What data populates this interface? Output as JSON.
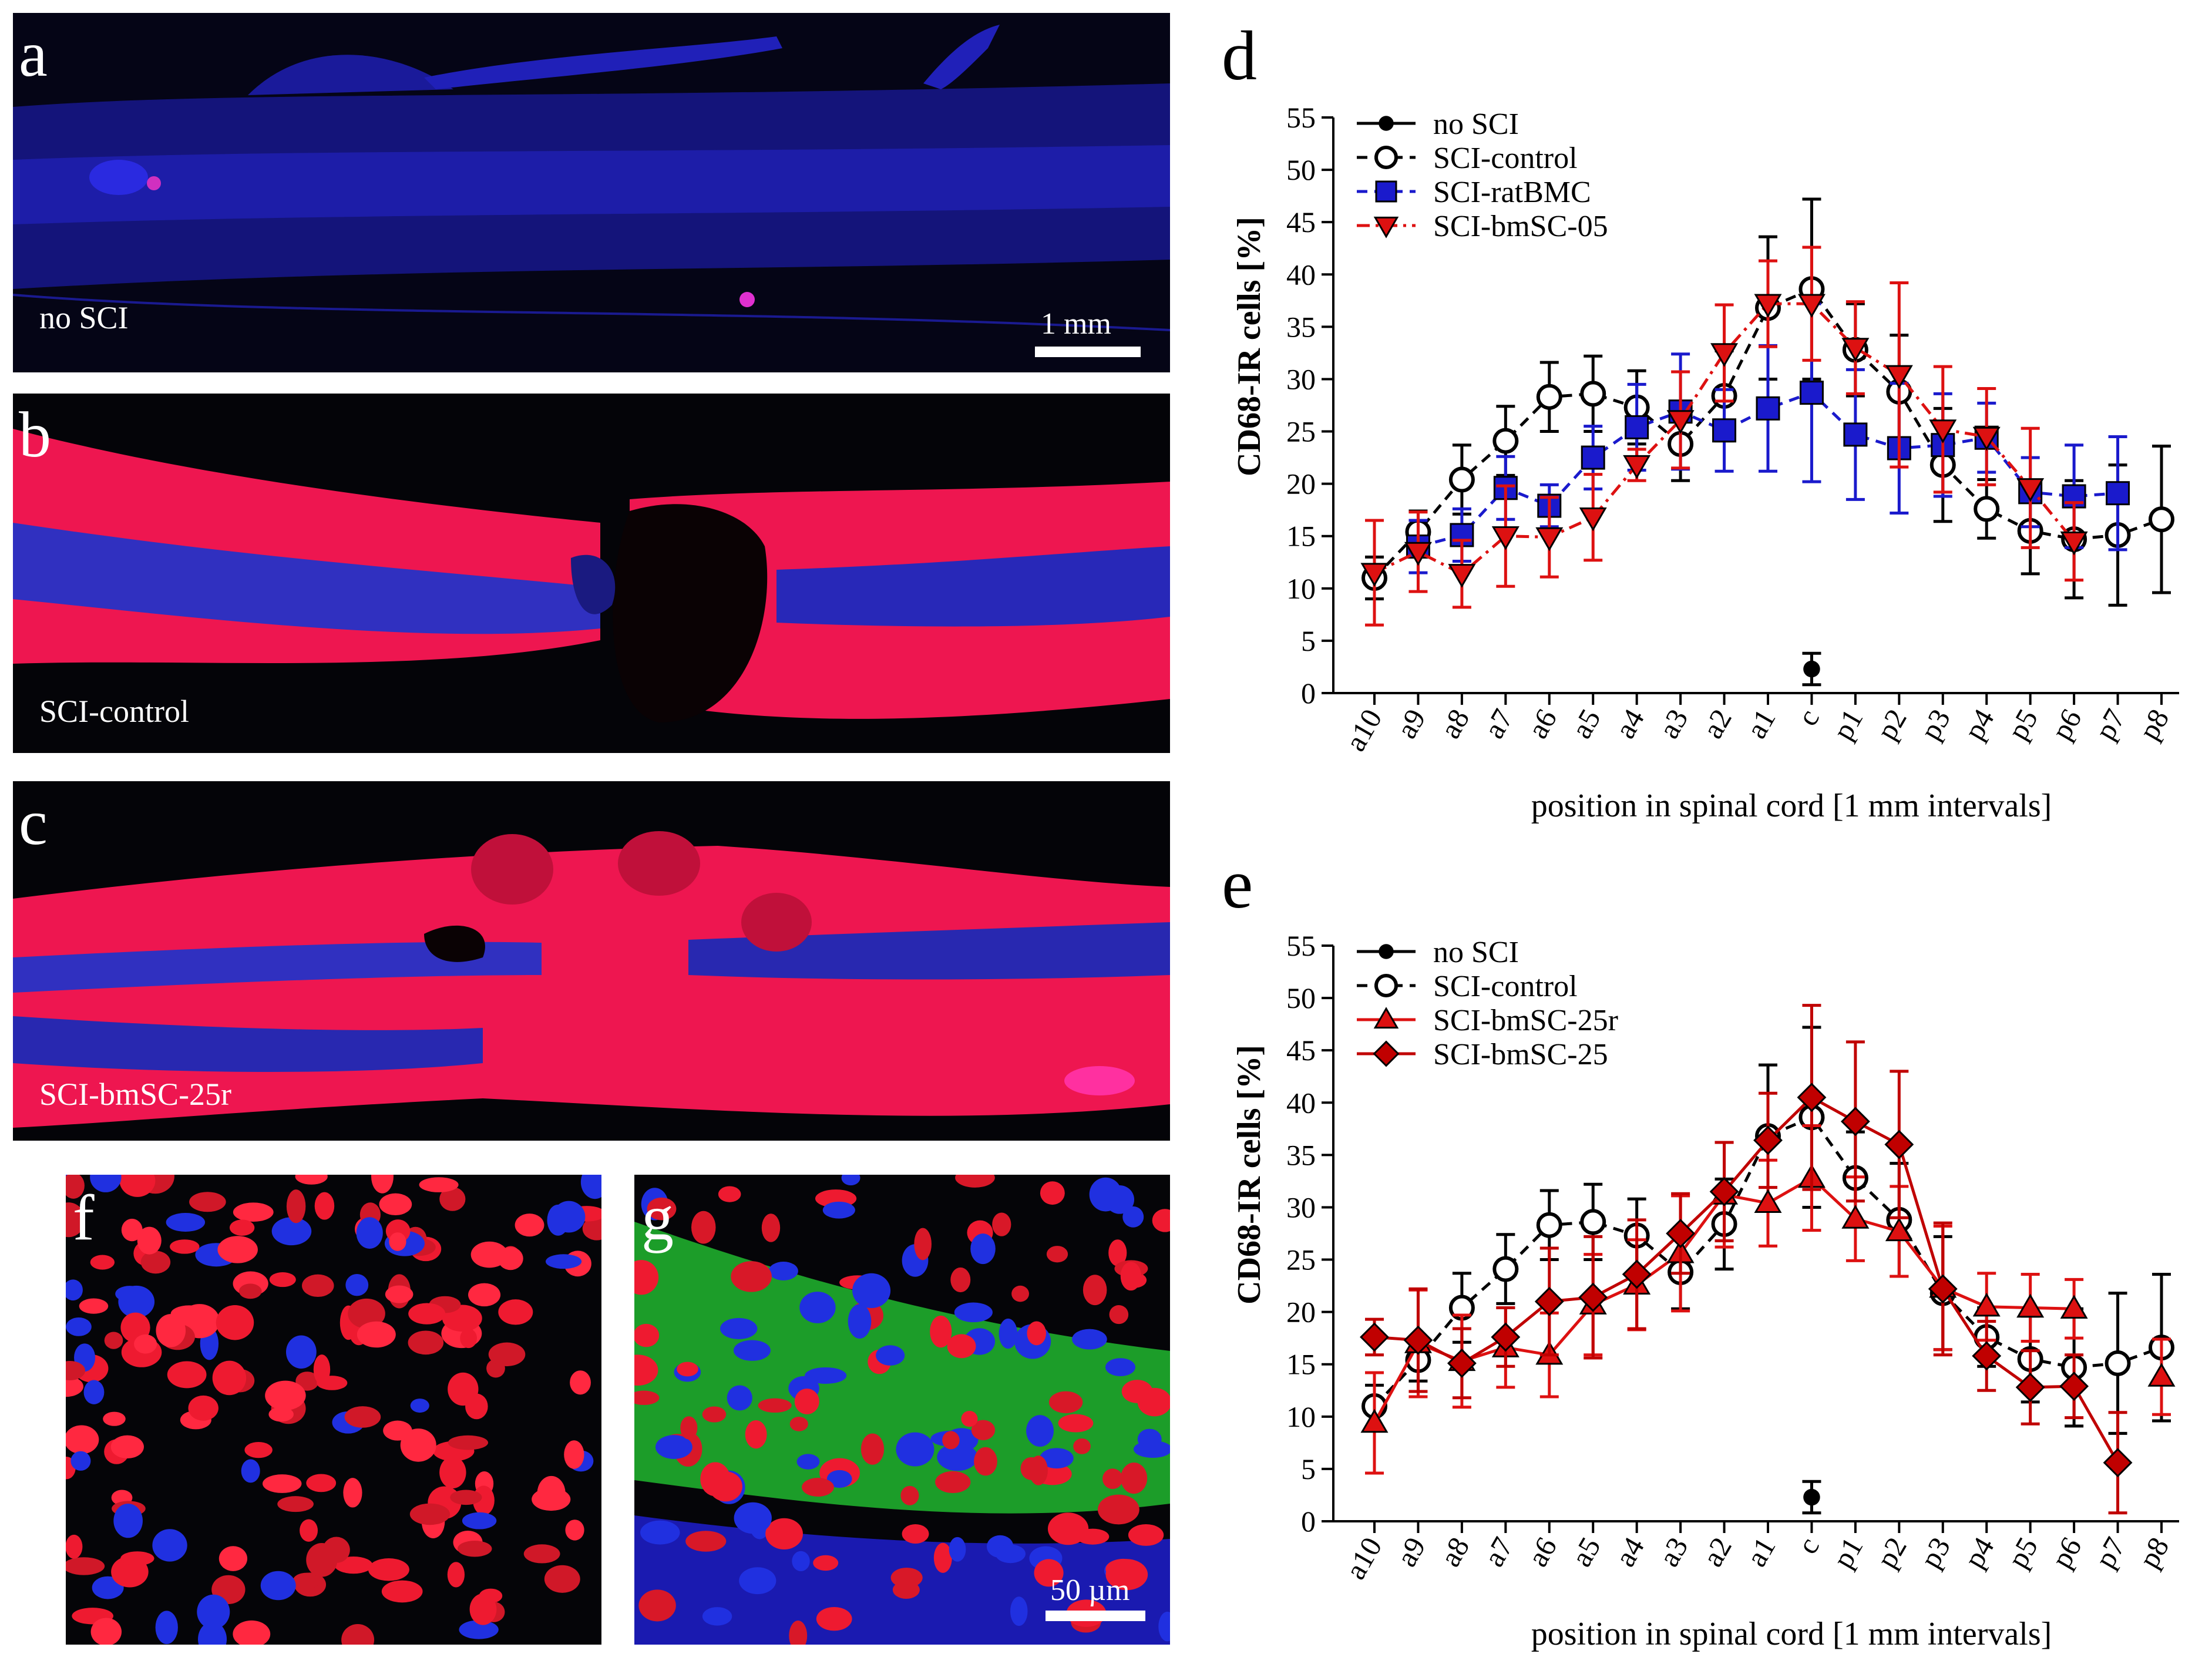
{
  "panels": {
    "a": {
      "letter": "a",
      "condition": "no SCI",
      "scale": "1 mm"
    },
    "b": {
      "letter": "b",
      "condition": "SCI-control"
    },
    "c": {
      "letter": "c",
      "condition": "SCI-bmSC-25r"
    },
    "f": {
      "letter": "f"
    },
    "g": {
      "letter": "g",
      "scale": "50 µm"
    }
  },
  "colors": {
    "black": "#000000",
    "blue": "#1a1acc",
    "red": "#dd1111",
    "darkred": "#c00000"
  },
  "chart_data": [
    {
      "type": "line",
      "panel_letter": "d",
      "title": "",
      "xlabel": "position in spinal cord [1 mm intervals]",
      "ylabel": "CD68-IR cells [%]",
      "ylim": [
        0,
        55
      ],
      "yticks": [
        0,
        5,
        10,
        15,
        20,
        25,
        30,
        35,
        40,
        45,
        50,
        55
      ],
      "categories": [
        "a10",
        "a9",
        "a8",
        "a7",
        "a6",
        "a5",
        "a4",
        "a3",
        "a2",
        "a1",
        "c",
        "p1",
        "p2",
        "p3",
        "p4",
        "p5",
        "p6",
        "p7",
        "p8"
      ],
      "legend": "top-left",
      "series": [
        {
          "name": "no SCI",
          "marker": "dot",
          "color": "#000000",
          "dash": "solid",
          "values": [
            null,
            null,
            null,
            null,
            null,
            null,
            null,
            null,
            null,
            null,
            2.3,
            null,
            null,
            null,
            null,
            null,
            null,
            null,
            null
          ],
          "errors": [
            null,
            null,
            null,
            null,
            null,
            null,
            null,
            null,
            null,
            null,
            1.5,
            null,
            null,
            null,
            null,
            null,
            null,
            null,
            null
          ]
        },
        {
          "name": "SCI-control",
          "marker": "circle-open",
          "color": "#000000",
          "dash": "dash",
          "values": [
            11.0,
            15.4,
            20.4,
            24.1,
            28.3,
            28.6,
            27.3,
            23.8,
            28.4,
            36.8,
            38.6,
            32.8,
            28.8,
            21.8,
            17.6,
            15.5,
            14.7,
            15.1,
            16.6
          ],
          "errors": [
            2.0,
            2.0,
            3.3,
            3.3,
            3.3,
            3.6,
            3.5,
            3.5,
            4.3,
            6.8,
            8.6,
            4.4,
            5.4,
            5.4,
            2.8,
            4.1,
            5.6,
            6.7,
            7.0
          ]
        },
        {
          "name": "SCI-ratBMC",
          "marker": "square",
          "color": "#1a1acc",
          "dash": "dash",
          "values": [
            null,
            14.0,
            15.1,
            19.6,
            17.9,
            22.5,
            25.4,
            26.9,
            25.1,
            27.2,
            28.7,
            24.7,
            23.4,
            23.7,
            24.4,
            19.2,
            18.8,
            19.1,
            null
          ],
          "errors": [
            null,
            2.5,
            2.5,
            3.0,
            2.0,
            3.0,
            4.1,
            5.5,
            3.9,
            6.0,
            8.5,
            6.2,
            6.2,
            4.9,
            3.3,
            3.3,
            4.9,
            5.4,
            null
          ]
        },
        {
          "name": "SCI-bmSC-05",
          "marker": "triangle-down",
          "color": "#dd1111",
          "dash": "dashdot",
          "values": [
            11.5,
            13.5,
            11.4,
            15.0,
            14.9,
            16.8,
            21.8,
            26.1,
            32.5,
            37.2,
            37.2,
            33.0,
            30.4,
            25.2,
            24.5,
            19.6,
            14.5,
            null,
            null
          ],
          "errors": [
            5.0,
            3.8,
            3.2,
            4.8,
            3.8,
            4.1,
            1.5,
            4.6,
            4.6,
            4.1,
            5.4,
            4.4,
            8.8,
            6.0,
            4.6,
            5.7,
            3.7,
            null,
            null
          ]
        }
      ]
    },
    {
      "type": "line",
      "panel_letter": "e",
      "title": "",
      "xlabel": "position in spinal cord [1 mm intervals]",
      "ylabel": "CD68-IR cells [%]",
      "ylim": [
        0,
        55
      ],
      "yticks": [
        0,
        5,
        10,
        15,
        20,
        25,
        30,
        35,
        40,
        45,
        50,
        55
      ],
      "categories": [
        "a10",
        "a9",
        "a8",
        "a7",
        "a6",
        "a5",
        "a4",
        "a3",
        "a2",
        "a1",
        "c",
        "p1",
        "p2",
        "p3",
        "p4",
        "p5",
        "p6",
        "p7",
        "p8"
      ],
      "legend": "top-left",
      "series": [
        {
          "name": "no SCI",
          "marker": "dot",
          "color": "#000000",
          "dash": "solid",
          "values": [
            null,
            null,
            null,
            null,
            null,
            null,
            null,
            null,
            null,
            null,
            2.3,
            null,
            null,
            null,
            null,
            null,
            null,
            null,
            null
          ],
          "errors": [
            null,
            null,
            null,
            null,
            null,
            null,
            null,
            null,
            null,
            null,
            1.5,
            null,
            null,
            null,
            null,
            null,
            null,
            null,
            null
          ]
        },
        {
          "name": "SCI-control",
          "marker": "circle-open",
          "color": "#000000",
          "dash": "dash",
          "values": [
            11.0,
            15.4,
            20.4,
            24.1,
            28.3,
            28.6,
            27.3,
            23.8,
            28.4,
            36.8,
            38.6,
            32.8,
            28.8,
            21.8,
            17.6,
            15.5,
            14.7,
            15.1,
            16.6
          ],
          "errors": [
            2.0,
            2.0,
            3.3,
            3.3,
            3.3,
            3.6,
            3.5,
            3.5,
            4.3,
            6.8,
            8.6,
            4.4,
            5.4,
            5.4,
            2.8,
            4.1,
            5.6,
            6.7,
            7.0
          ]
        },
        {
          "name": "SCI-bmSC-25r",
          "marker": "triangle-up",
          "color": "#dd1111",
          "dash": "solid",
          "values": [
            9.4,
            17.0,
            15.3,
            16.6,
            15.9,
            20.7,
            22.6,
            25.6,
            31.2,
            30.4,
            32.8,
            28.9,
            27.7,
            22.3,
            20.5,
            20.4,
            20.3,
            null,
            13.8
          ],
          "errors": [
            4.8,
            5.1,
            4.4,
            3.8,
            4.0,
            4.8,
            4.3,
            5.5,
            5.0,
            4.1,
            5.0,
            4.0,
            4.3,
            5.9,
            3.2,
            3.2,
            2.8,
            null,
            3.6
          ]
        },
        {
          "name": "SCI-bmSC-25",
          "marker": "diamond",
          "color": "#c00000",
          "dash": "solid",
          "values": [
            17.6,
            17.3,
            15.1,
            17.6,
            21.0,
            21.4,
            23.6,
            27.5,
            31.5,
            36.4,
            40.5,
            38.2,
            36.0,
            22.2,
            15.8,
            12.8,
            12.9,
            5.6,
            null
          ],
          "errors": [
            1.7,
            4.9,
            3.3,
            2.8,
            5.1,
            5.8,
            5.2,
            3.8,
            4.7,
            4.5,
            8.8,
            7.6,
            7.0,
            6.3,
            3.3,
            3.5,
            3.0,
            4.8,
            null
          ]
        }
      ]
    }
  ]
}
